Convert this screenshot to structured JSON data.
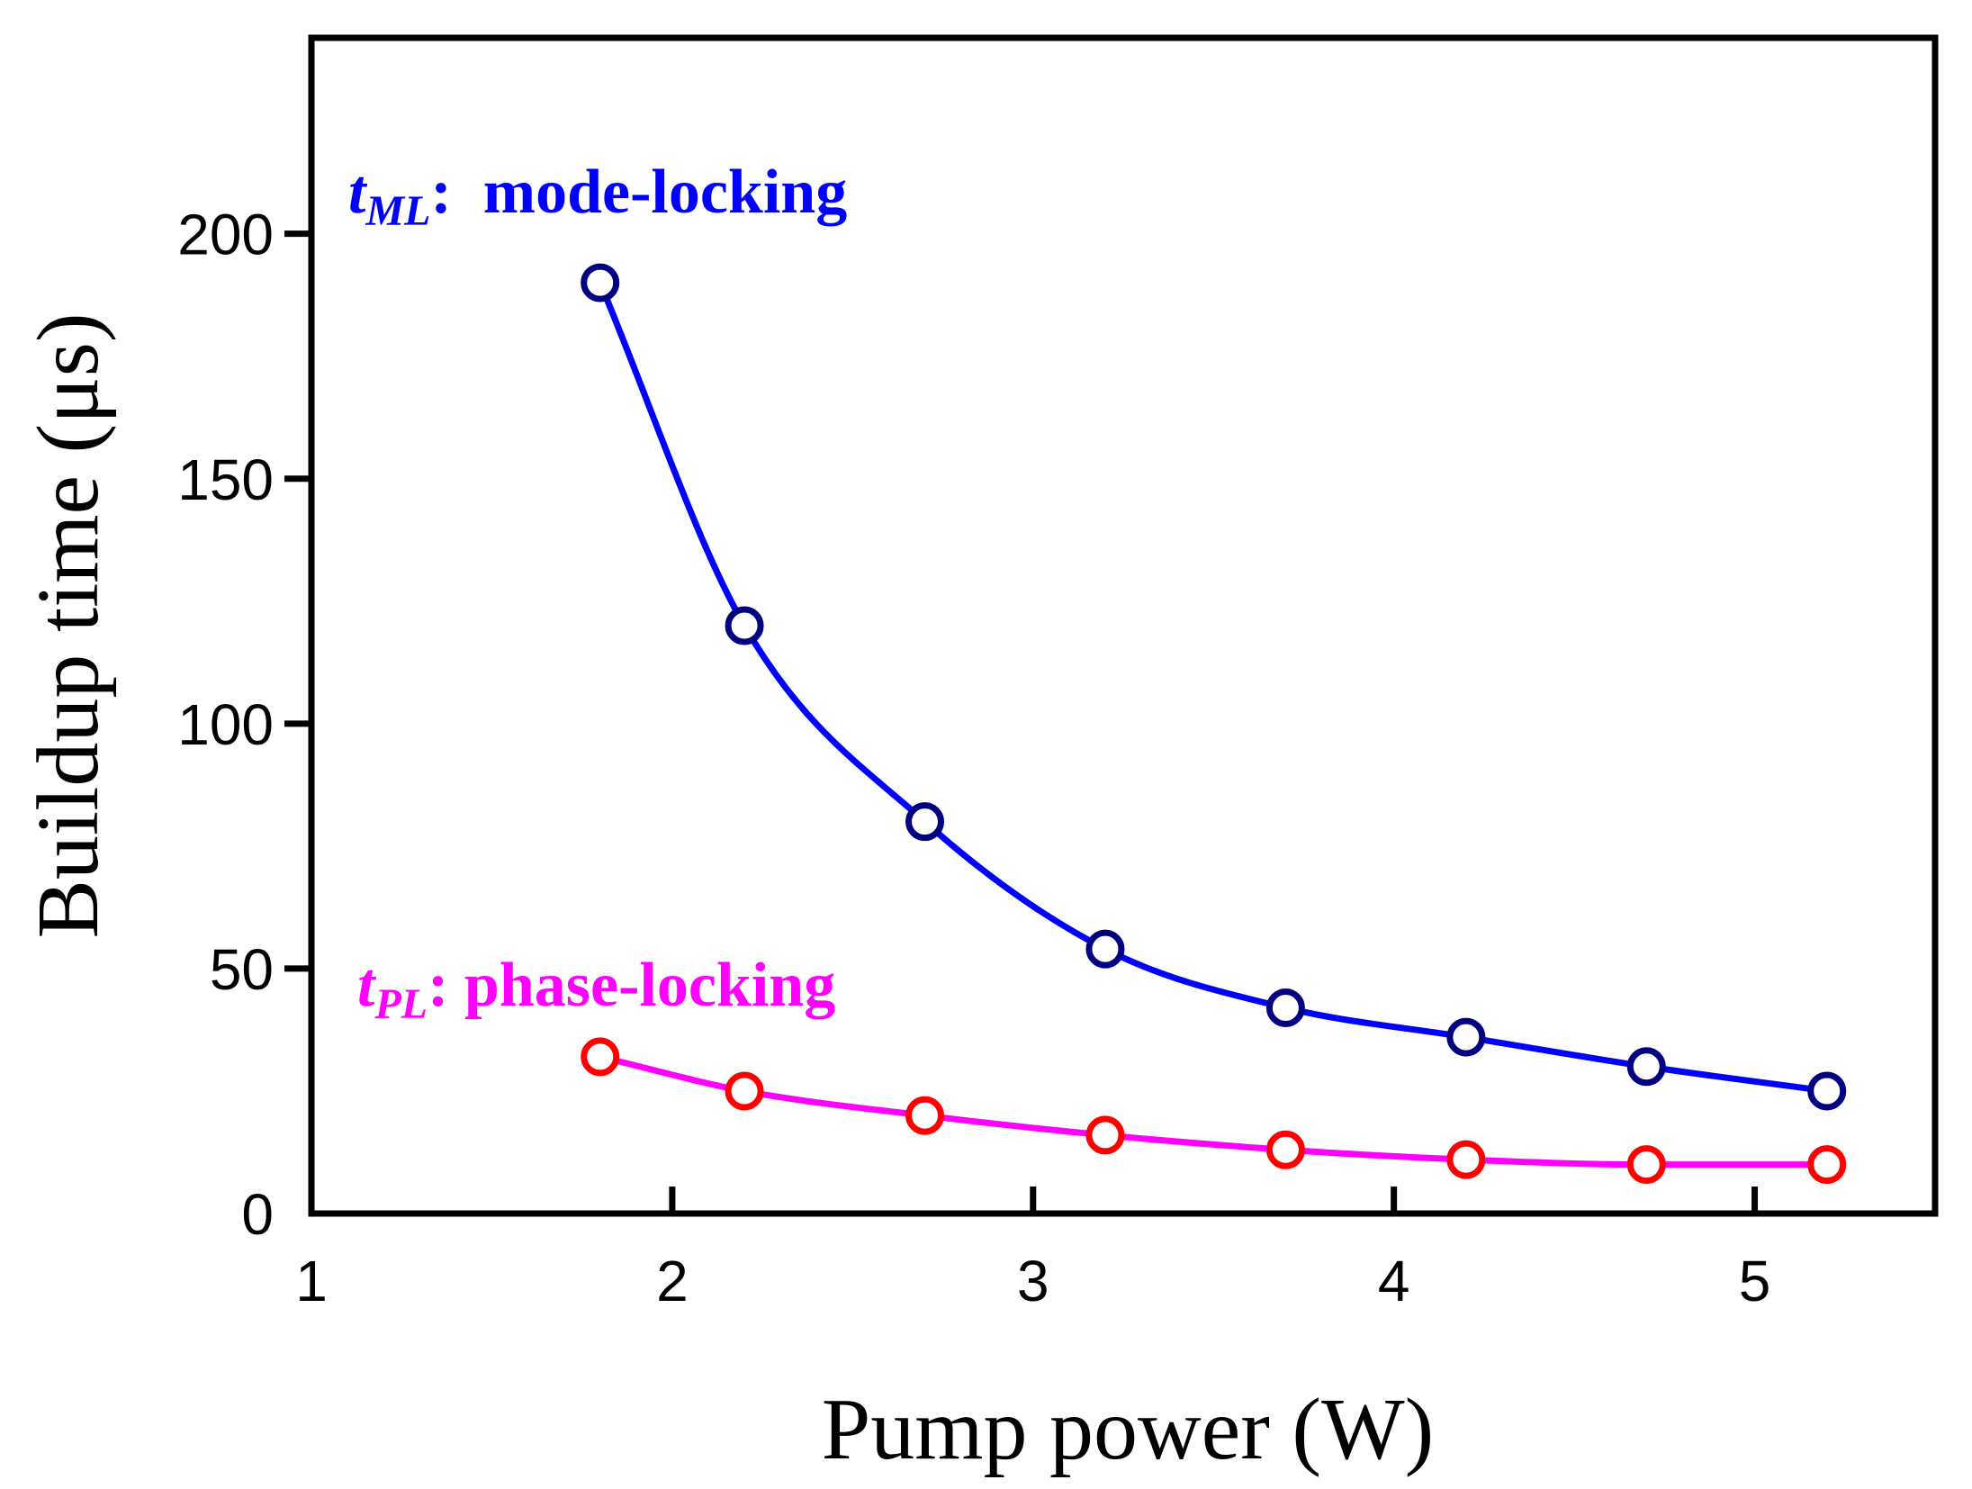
{
  "chart_data": {
    "type": "line",
    "xlabel": "Pump power (W)",
    "ylabel": "Buildup time (μs)",
    "xlim": [
      1,
      5.5
    ],
    "ylim": [
      0,
      240
    ],
    "xticks": [
      1,
      2,
      3,
      4,
      5
    ],
    "yticks": [
      0,
      50,
      100,
      150,
      200
    ],
    "grid": false,
    "legend": "none",
    "series": [
      {
        "x": [
          1.8,
          2.2,
          2.7,
          3.2,
          3.7,
          4.2,
          4.7,
          5.2
        ],
        "values": [
          190,
          120,
          80,
          54,
          42,
          36,
          30,
          25
        ],
        "line_color": "#0000ff",
        "marker_color": "#000080",
        "marker": "open-circle"
      },
      {
        "x": [
          1.8,
          2.2,
          2.7,
          3.2,
          3.7,
          4.2,
          4.7,
          5.2
        ],
        "values": [
          32,
          25,
          20,
          16,
          13,
          11,
          10,
          10
        ],
        "line_color": "#ff00ff",
        "marker_color": "#ff0000",
        "marker": "open-circle"
      }
    ],
    "annotations": [
      {
        "symbol": "t",
        "subscript": "ML",
        "text": ":  mode-locking",
        "color": "#0000ff"
      },
      {
        "symbol": "t",
        "subscript": "PL",
        "text": ": phase-locking",
        "color": "#ff00ff"
      }
    ]
  }
}
